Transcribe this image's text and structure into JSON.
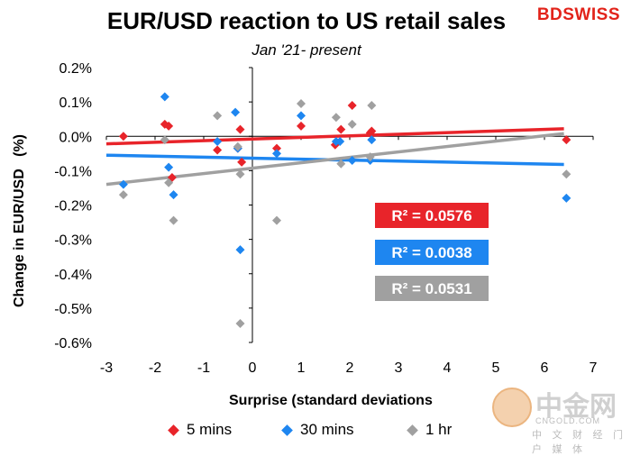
{
  "brand": "BDSWISS",
  "watermark": {
    "name": "中金网",
    "url": "CNGOLD.COM",
    "tagline": "中 文 财 经 门 户 媒 体"
  },
  "chart_data": {
    "type": "scatter",
    "title": "EUR/USD reaction to US retail sales",
    "subtitle": "Jan '21- present",
    "xlabel": "Surprise (standard deviations",
    "ylabel": "Change in EUR/USD   (%)",
    "xlim": [
      -3,
      7
    ],
    "ylim": [
      -0.6,
      0.2
    ],
    "xticks": [
      "-3",
      "-2",
      "-1",
      "0",
      "1",
      "2",
      "3",
      "4",
      "5",
      "6",
      "7"
    ],
    "yticks": [
      "0.2%",
      "0.1%",
      "0.0%",
      "-0.1%",
      "-0.2%",
      "-0.3%",
      "-0.4%",
      "-0.5%",
      "-0.6%"
    ],
    "grid": false,
    "legend_position": "bottom",
    "series": [
      {
        "name": "5 mins",
        "color": "#e8242a",
        "points": [
          [
            -2.65,
            0.0
          ],
          [
            -1.8,
            0.035
          ],
          [
            -1.72,
            0.03
          ],
          [
            -1.65,
            -0.12
          ],
          [
            -0.72,
            -0.04
          ],
          [
            -0.3,
            -0.035
          ],
          [
            -0.25,
            0.02
          ],
          [
            -0.22,
            -0.075
          ],
          [
            0.5,
            -0.035
          ],
          [
            1.0,
            0.03
          ],
          [
            1.7,
            -0.025
          ],
          [
            1.82,
            0.02
          ],
          [
            2.05,
            0.09
          ],
          [
            2.42,
            0.01
          ],
          [
            2.45,
            0.015
          ],
          [
            6.45,
            -0.01
          ]
        ],
        "trend": [
          [
            -3,
            -0.022
          ],
          [
            6.4,
            0.022
          ]
        ],
        "r2_label": "R² = 0.0576"
      },
      {
        "name": "30 mins",
        "color": "#1e86f0",
        "points": [
          [
            -2.65,
            -0.14
          ],
          [
            -1.8,
            0.115
          ],
          [
            -1.72,
            -0.09
          ],
          [
            -1.62,
            -0.17
          ],
          [
            -0.72,
            -0.015
          ],
          [
            -0.35,
            0.07
          ],
          [
            -0.3,
            -0.035
          ],
          [
            -0.25,
            -0.33
          ],
          [
            0.5,
            -0.05
          ],
          [
            1.0,
            0.06
          ],
          [
            1.72,
            -0.015
          ],
          [
            1.8,
            -0.015
          ],
          [
            2.05,
            -0.07
          ],
          [
            2.42,
            -0.07
          ],
          [
            2.45,
            -0.01
          ],
          [
            6.45,
            -0.18
          ]
        ],
        "trend": [
          [
            -3,
            -0.055
          ],
          [
            6.4,
            -0.082
          ]
        ],
        "r2_label": "R² = 0.0038"
      },
      {
        "name": "1 hr",
        "color": "#a0a0a0",
        "points": [
          [
            -2.65,
            -0.17
          ],
          [
            -1.8,
            -0.01
          ],
          [
            -1.72,
            -0.135
          ],
          [
            -1.62,
            -0.245
          ],
          [
            -0.72,
            0.06
          ],
          [
            -0.3,
            -0.03
          ],
          [
            -0.25,
            -0.11
          ],
          [
            -0.25,
            -0.545
          ],
          [
            0.5,
            -0.245
          ],
          [
            1.0,
            0.095
          ],
          [
            1.72,
            0.055
          ],
          [
            1.82,
            -0.08
          ],
          [
            2.05,
            0.035
          ],
          [
            2.42,
            -0.06
          ],
          [
            2.45,
            0.09
          ],
          [
            6.45,
            -0.11
          ]
        ],
        "trend": [
          [
            -3,
            -0.14
          ],
          [
            6.4,
            0.008
          ]
        ],
        "r2_label": "R² = 0.0531"
      }
    ]
  }
}
